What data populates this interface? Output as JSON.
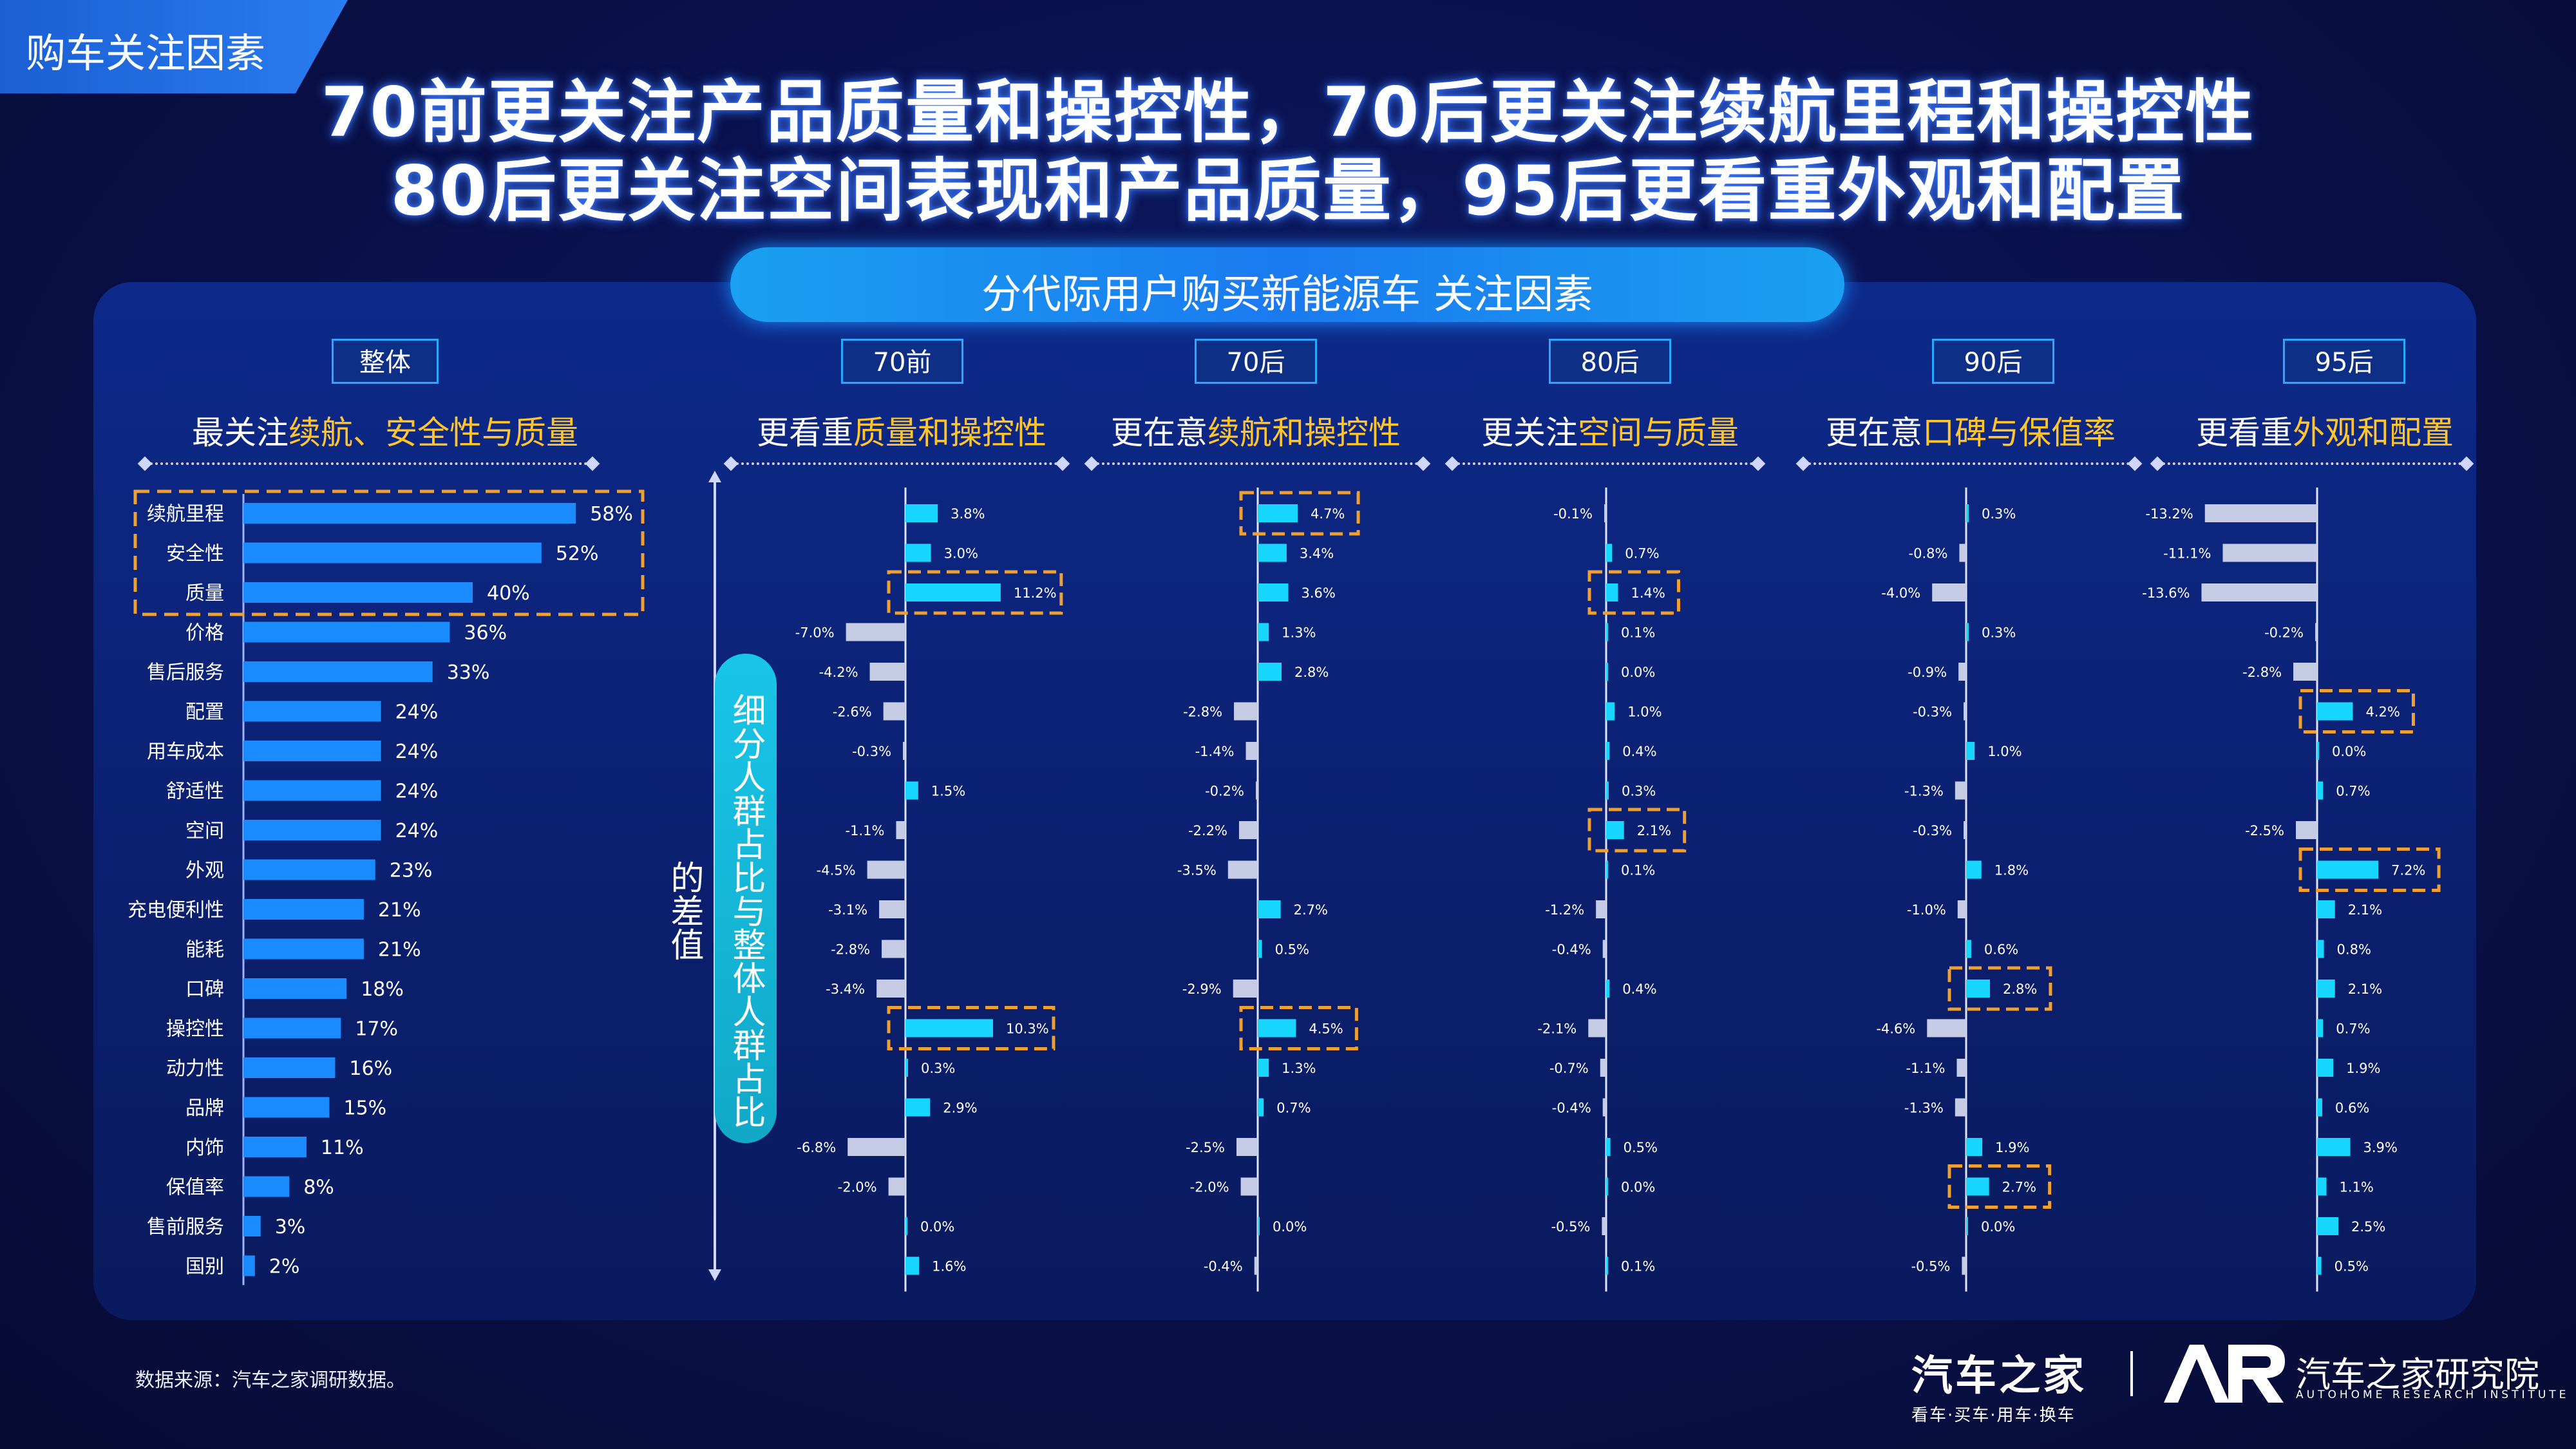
{
  "section_tag": "购车关注因素",
  "headline": {
    "line1": "70前更关注产品质量和操控性，70后更关注续航里程和操控性",
    "line2": "80后更关注空间表现和产品质量，95后更看重外观和配置"
  },
  "banner": "分代际用户购买新能源车  关注因素",
  "side_title": "细分人群占比与整体人群占比的差值",
  "source": "数据来源：汽车之家调研数据。",
  "logo": {
    "brand_cn": "汽车之家",
    "brand_slogan": "看车·买车·用车·换车",
    "institute_cn": "汽车之家研究院",
    "institute_en": "AUTOHOME RESEARCH INSTITUTE"
  },
  "colors": {
    "overall_bar": "#1a8cff",
    "positive_bar": "#18d7ff",
    "negative_bar": "#c6cbe6",
    "highlight": "#ffc52b",
    "highlight_box": "#f0a030"
  },
  "groups": [
    {
      "tag": "整体",
      "pre": "最关注",
      "hl": "续航、安全性与质量"
    },
    {
      "tag": "70前",
      "pre": "更看重",
      "hl": "质量和操控性"
    },
    {
      "tag": "70后",
      "pre": "更在意",
      "hl": "续航和操控性"
    },
    {
      "tag": "80后",
      "pre": "更关注",
      "hl": "空间与质量"
    },
    {
      "tag": "90后",
      "pre": "更在意",
      "hl": "口碑与保值率"
    },
    {
      "tag": "95后",
      "pre": "更看重",
      "hl": "外观和配置"
    }
  ],
  "chart_data": [
    {
      "type": "bar",
      "orientation": "horizontal",
      "title": "整体",
      "unit": "%",
      "categories": [
        "续航里程",
        "安全性",
        "质量",
        "价格",
        "售后服务",
        "配置",
        "用车成本",
        "舒适性",
        "空间",
        "外观",
        "充电便利性",
        "能耗",
        "口碑",
        "操控性",
        "动力性",
        "品牌",
        "内饰",
        "保值率",
        "售前服务",
        "国别"
      ],
      "values": [
        58,
        52,
        40,
        36,
        33,
        24,
        24,
        24,
        24,
        23,
        21,
        21,
        18,
        17,
        16,
        15,
        11,
        8,
        3,
        2
      ],
      "highlighted": [
        0,
        1,
        2
      ]
    },
    {
      "type": "bar",
      "orientation": "horizontal",
      "title": "70前",
      "unit": "%",
      "categories": [
        "续航里程",
        "安全性",
        "质量",
        "价格",
        "售后服务",
        "配置",
        "用车成本",
        "舒适性",
        "空间",
        "外观",
        "充电便利性",
        "能耗",
        "口碑",
        "操控性",
        "动力性",
        "品牌",
        "内饰",
        "保值率",
        "售前服务",
        "国别"
      ],
      "values": [
        3.8,
        3.0,
        11.2,
        -7.0,
        -4.2,
        -2.6,
        -0.3,
        1.5,
        -1.1,
        -4.5,
        -3.1,
        -2.8,
        -3.4,
        10.3,
        0.3,
        2.9,
        -6.8,
        -2.0,
        0.0,
        1.6
      ],
      "highlighted": [
        2,
        13
      ]
    },
    {
      "type": "bar",
      "orientation": "horizontal",
      "title": "70后",
      "unit": "%",
      "categories": [
        "续航里程",
        "安全性",
        "质量",
        "价格",
        "售后服务",
        "配置",
        "用车成本",
        "舒适性",
        "空间",
        "外观",
        "充电便利性",
        "能耗",
        "口碑",
        "操控性",
        "动力性",
        "品牌",
        "内饰",
        "保值率",
        "售前服务",
        "国别"
      ],
      "values": [
        4.7,
        3.4,
        3.6,
        1.3,
        2.8,
        -2.8,
        -1.4,
        -0.2,
        -2.2,
        -3.5,
        2.7,
        0.5,
        -2.9,
        4.5,
        1.3,
        0.7,
        -2.5,
        -2.0,
        0.0,
        -0.4
      ],
      "highlighted": [
        0,
        13
      ]
    },
    {
      "type": "bar",
      "orientation": "horizontal",
      "title": "80后",
      "unit": "%",
      "categories": [
        "续航里程",
        "安全性",
        "质量",
        "价格",
        "售后服务",
        "配置",
        "用车成本",
        "舒适性",
        "空间",
        "外观",
        "充电便利性",
        "能耗",
        "口碑",
        "操控性",
        "动力性",
        "品牌",
        "内饰",
        "保值率",
        "售前服务",
        "国别"
      ],
      "values": [
        -0.1,
        0.7,
        1.4,
        0.1,
        0.0,
        1.0,
        0.4,
        0.3,
        2.1,
        0.1,
        -1.2,
        -0.4,
        0.4,
        -2.1,
        -0.7,
        -0.4,
        0.5,
        0.0,
        -0.5,
        0.1
      ],
      "highlighted": [
        2,
        8
      ]
    },
    {
      "type": "bar",
      "orientation": "horizontal",
      "title": "90后",
      "unit": "%",
      "categories": [
        "续航里程",
        "安全性",
        "质量",
        "价格",
        "售后服务",
        "配置",
        "用车成本",
        "舒适性",
        "空间",
        "外观",
        "充电便利性",
        "能耗",
        "口碑",
        "操控性",
        "动力性",
        "品牌",
        "内饰",
        "保值率",
        "售前服务",
        "国别"
      ],
      "values": [
        0.3,
        -0.8,
        -4.0,
        0.3,
        -0.9,
        -0.3,
        1.0,
        -1.3,
        -0.3,
        1.8,
        -1.0,
        0.6,
        2.8,
        -4.6,
        -1.1,
        -1.3,
        1.9,
        2.7,
        0.0,
        -0.5
      ],
      "highlighted": [
        12,
        17
      ]
    },
    {
      "type": "bar",
      "orientation": "horizontal",
      "title": "95后",
      "unit": "%",
      "categories": [
        "续航里程",
        "安全性",
        "质量",
        "价格",
        "售后服务",
        "配置",
        "用车成本",
        "舒适性",
        "空间",
        "外观",
        "充电便利性",
        "能耗",
        "口碑",
        "操控性",
        "动力性",
        "品牌",
        "内饰",
        "保值率",
        "售前服务",
        "国别"
      ],
      "values": [
        -13.2,
        -11.1,
        -13.6,
        -0.2,
        -2.8,
        4.2,
        0.0,
        0.7,
        -2.5,
        7.2,
        2.1,
        0.8,
        2.1,
        0.7,
        1.9,
        0.6,
        3.9,
        1.1,
        2.5,
        0.5
      ],
      "highlighted": [
        5,
        9
      ]
    }
  ]
}
